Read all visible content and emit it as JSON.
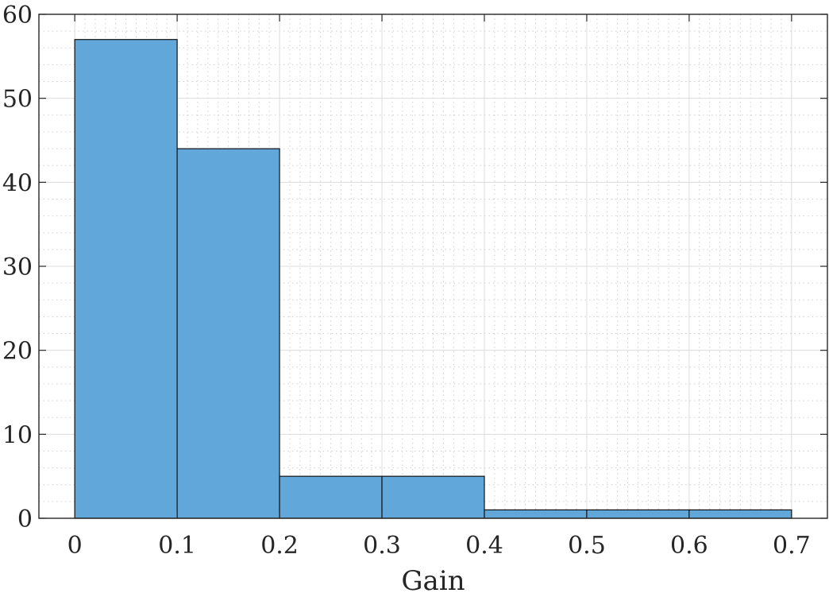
{
  "chart_data": {
    "type": "bar",
    "subtype": "histogram",
    "bin_edges": [
      0,
      0.1,
      0.2,
      0.3,
      0.4,
      0.5,
      0.6,
      0.7
    ],
    "values": [
      57,
      44,
      5,
      5,
      1,
      1,
      1
    ],
    "xlabel": "Gain",
    "ylabel": "",
    "xlim": [
      -0.035,
      0.735
    ],
    "ylim": [
      0,
      60
    ],
    "xticks": [
      0,
      0.1,
      0.2,
      0.3,
      0.4,
      0.5,
      0.6,
      0.7
    ],
    "xtick_labels": [
      "0",
      "0.1",
      "0.2",
      "0.3",
      "0.4",
      "0.5",
      "0.6",
      "0.7"
    ],
    "yticks": [
      0,
      10,
      20,
      30,
      40,
      50,
      60
    ],
    "ytick_labels": [
      "0",
      "10",
      "20",
      "30",
      "40",
      "50",
      "60"
    ],
    "grid": true,
    "minor_grid": true,
    "bar_color": "#62a7d9",
    "edge_color": "#111111"
  }
}
